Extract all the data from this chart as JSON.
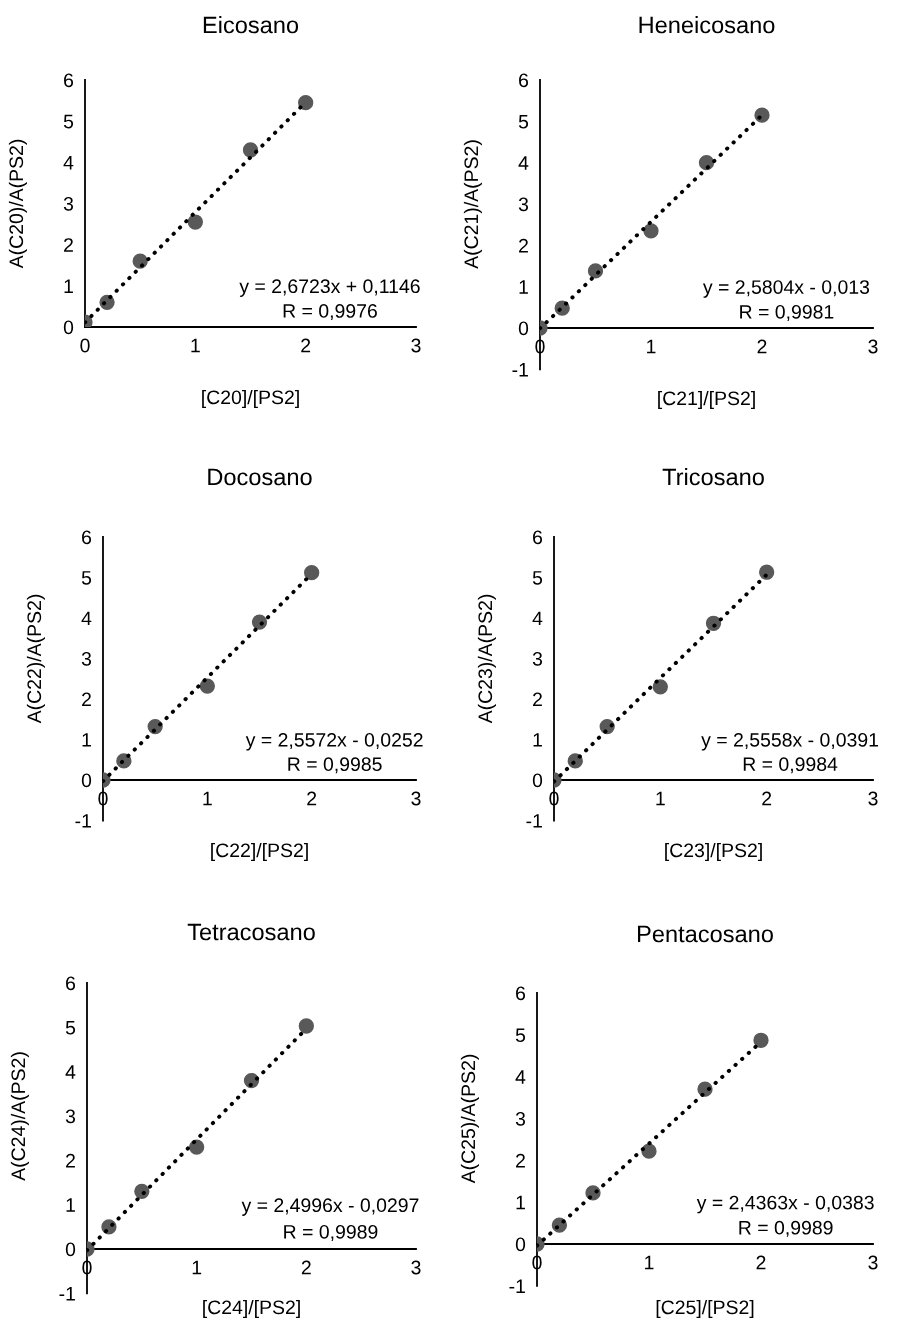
{
  "chart_data": [
    {
      "type": "scatter",
      "title": "Eicosano",
      "xlabel": "[C20]/[PS2]",
      "ylabel": "A(C20)/A(PS2)",
      "xlim": [
        0,
        3
      ],
      "xticks": [
        0,
        1,
        2,
        3
      ],
      "ylim": [
        0,
        6
      ],
      "yticks": [
        0,
        1,
        2,
        3,
        4,
        5,
        6
      ],
      "x": [
        0,
        0.2,
        0.5,
        1,
        1.5,
        2
      ],
      "series": [
        {
          "color": "#595959",
          "marker": "circle",
          "values": [
            0.12,
            0.6,
            1.6,
            2.55,
            4.3,
            5.45
          ]
        },
        {
          "type": "line",
          "color": "#000000",
          "marker": "none",
          "line_style": "dotted",
          "values": [
            0.11,
            0.65,
            1.45,
            2.79,
            4.12,
            5.46
          ]
        }
      ],
      "annotations": [
        "y = 2,6723x + 0,1146",
        "R = 0,9976"
      ]
    },
    {
      "type": "scatter",
      "title": "Heneicosano",
      "xlabel": "[C21]/[PS2]",
      "ylabel": "A(C21)/A(PS2)",
      "xlim": [
        0,
        3
      ],
      "xticks": [
        0,
        1,
        2,
        3
      ],
      "ylim": [
        -1,
        6
      ],
      "yticks": [
        -1,
        0,
        1,
        2,
        3,
        4,
        5,
        6
      ],
      "x": [
        0,
        0.2,
        0.5,
        1,
        1.5,
        2
      ],
      "series": [
        {
          "color": "#595959",
          "marker": "circle",
          "values": [
            0,
            0.48,
            1.38,
            2.35,
            4.0,
            5.15
          ]
        },
        {
          "type": "line",
          "color": "#000000",
          "marker": "none",
          "line_style": "dotted",
          "values": [
            -0.01,
            0.5,
            1.28,
            2.57,
            3.86,
            5.15
          ]
        }
      ],
      "annotations": [
        "y = 2,5804x - 0,013",
        "R = 0,9981"
      ]
    },
    {
      "type": "scatter",
      "title": "Docosano",
      "xlabel": "[C22]/[PS2]",
      "ylabel": "A(C22)/A(PS2)",
      "xlim": [
        0,
        3
      ],
      "xticks": [
        0,
        1,
        2,
        3
      ],
      "ylim": [
        -1,
        6
      ],
      "yticks": [
        -1,
        0,
        1,
        2,
        3,
        4,
        5,
        6
      ],
      "x": [
        0,
        0.2,
        0.5,
        1,
        1.5,
        2
      ],
      "series": [
        {
          "color": "#595959",
          "marker": "circle",
          "values": [
            0,
            0.47,
            1.32,
            2.32,
            3.9,
            5.12
          ]
        },
        {
          "type": "line",
          "color": "#000000",
          "marker": "none",
          "line_style": "dotted",
          "values": [
            -0.03,
            0.49,
            1.25,
            2.53,
            3.81,
            5.09
          ]
        }
      ],
      "annotations": [
        "y = 2,5572x - 0,0252",
        "R = 0,9985"
      ]
    },
    {
      "type": "scatter",
      "title": "Tricosano",
      "xlabel": "[C23]/[PS2]",
      "ylabel": "A(C23)/A(PS2)",
      "xlim": [
        0,
        3
      ],
      "xticks": [
        0,
        1,
        2,
        3
      ],
      "ylim": [
        -1,
        6
      ],
      "yticks": [
        -1,
        0,
        1,
        2,
        3,
        4,
        5,
        6
      ],
      "x": [
        0,
        0.2,
        0.5,
        1,
        1.5,
        2
      ],
      "series": [
        {
          "color": "#595959",
          "marker": "circle",
          "values": [
            0,
            0.47,
            1.32,
            2.3,
            3.87,
            5.13
          ]
        },
        {
          "type": "line",
          "color": "#000000",
          "marker": "none",
          "line_style": "dotted",
          "values": [
            -0.04,
            0.47,
            1.24,
            2.52,
            3.79,
            5.07
          ]
        }
      ],
      "annotations": [
        "y = 2,5558x - 0,0391",
        "R = 0,9984"
      ]
    },
    {
      "type": "scatter",
      "title": "Tetracosano",
      "xlabel": "[C24]/[PS2]",
      "ylabel": "A(C24)/A(PS2)",
      "xlim": [
        0,
        3
      ],
      "xticks": [
        0,
        1,
        2,
        3
      ],
      "ylim": [
        -1,
        6
      ],
      "yticks": [
        -1,
        0,
        1,
        2,
        3,
        4,
        5,
        6
      ],
      "x": [
        0,
        0.2,
        0.5,
        1,
        1.5,
        2
      ],
      "series": [
        {
          "color": "#595959",
          "marker": "circle",
          "values": [
            0,
            0.5,
            1.3,
            2.3,
            3.8,
            5.03
          ]
        },
        {
          "type": "line",
          "color": "#000000",
          "marker": "none",
          "line_style": "dotted",
          "values": [
            -0.03,
            0.47,
            1.22,
            2.47,
            3.72,
            4.97
          ]
        }
      ],
      "annotations": [
        "y = 2,4996x - 0,0297",
        "R = 0,9989"
      ]
    },
    {
      "type": "scatter",
      "title": "Pentacosano",
      "xlabel": "[C25]/[PS2]",
      "ylabel": "A(C25)/A(PS2)",
      "xlim": [
        0,
        3
      ],
      "xticks": [
        0,
        1,
        2,
        3
      ],
      "ylim": [
        -1,
        6
      ],
      "yticks": [
        -1,
        0,
        1,
        2,
        3,
        4,
        5,
        6
      ],
      "x": [
        0,
        0.2,
        0.5,
        1,
        1.5,
        2
      ],
      "series": [
        {
          "color": "#595959",
          "marker": "circle",
          "values": [
            0,
            0.45,
            1.22,
            2.22,
            3.7,
            4.87
          ]
        },
        {
          "type": "line",
          "color": "#000000",
          "marker": "none",
          "line_style": "dotted",
          "values": [
            -0.04,
            0.45,
            1.18,
            2.4,
            3.62,
            4.83
          ]
        }
      ],
      "annotations": [
        "y = 2,4363x - 0,0383",
        "R = 0,9989"
      ]
    }
  ]
}
